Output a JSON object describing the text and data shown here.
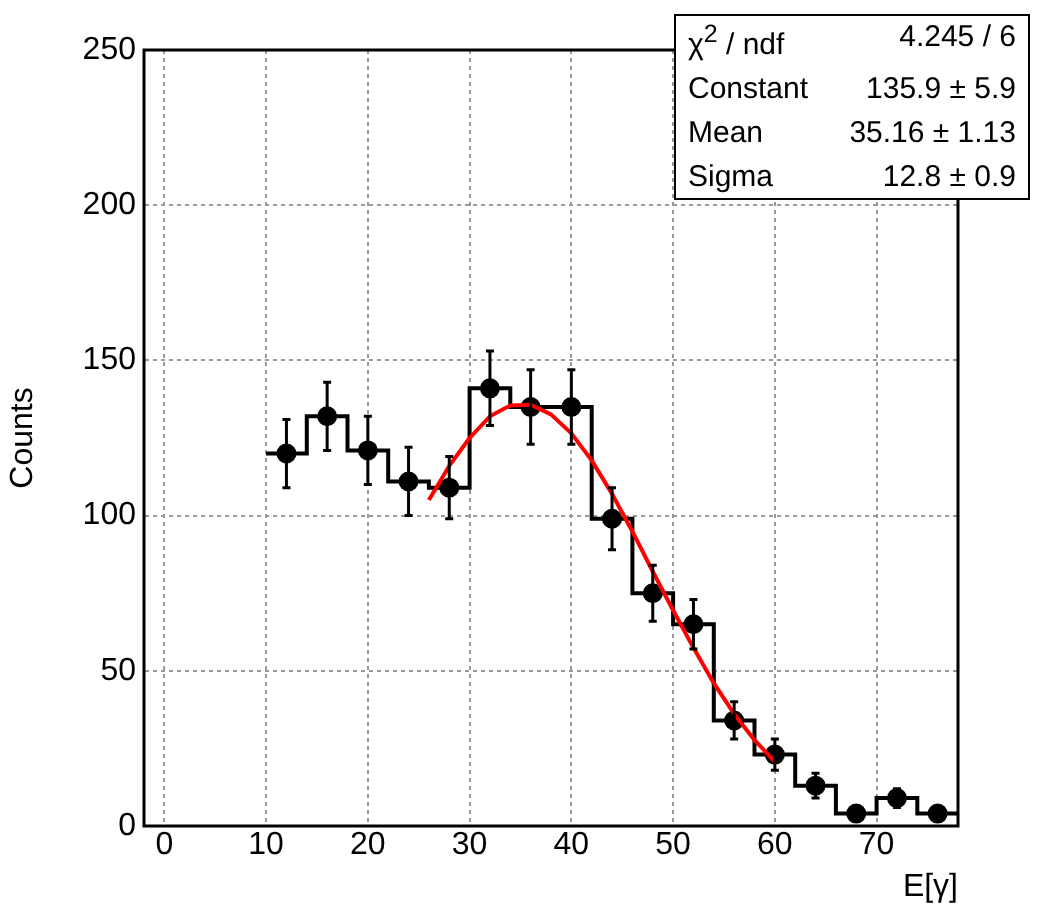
{
  "chart_data": {
    "type": "histogram",
    "xlabel": "E[γ]",
    "ylabel": "Counts",
    "bins": [
      10,
      14,
      18,
      22,
      26,
      30,
      34,
      38,
      42,
      46,
      50,
      54,
      58,
      62,
      66,
      70,
      74,
      78
    ],
    "values": [
      120,
      132,
      121,
      111,
      109,
      141,
      135,
      135,
      99,
      75,
      65,
      34,
      23,
      13,
      4,
      9,
      4
    ],
    "color": "#000000",
    "series": [
      {
        "type": "scatter",
        "color": "#000000",
        "marker": "circle",
        "x": [
          12,
          16,
          20,
          24,
          28,
          32,
          36,
          40,
          44,
          48,
          52,
          56,
          60,
          64,
          68,
          72,
          76
        ],
        "values": [
          120,
          132,
          121,
          111,
          109,
          141,
          135,
          135,
          99,
          75,
          65,
          34,
          23,
          13,
          4,
          9,
          4
        ],
        "errors": [
          11,
          11,
          11,
          11,
          10,
          12,
          12,
          12,
          10,
          9,
          8,
          6,
          5,
          4,
          null,
          3,
          null
        ]
      },
      {
        "type": "line",
        "color": "#ff0000",
        "x": [
          26,
          28,
          30,
          32,
          34,
          36,
          38,
          40,
          42,
          44,
          46,
          48,
          50,
          52,
          54,
          56,
          58,
          60
        ],
        "values": [
          105,
          116,
          125,
          132,
          135.5,
          135.7,
          132.6,
          126.5,
          117.8,
          107,
          94.9,
          82,
          69.5,
          57.4,
          46,
          36.1,
          27.7,
          20.7
        ]
      }
    ],
    "xlim": [
      -2,
      78
    ],
    "xticks": [
      0,
      10,
      20,
      30,
      40,
      50,
      60,
      70
    ],
    "ylim": [
      0,
      250
    ],
    "yticks": [
      0,
      50,
      100,
      150,
      200,
      250
    ],
    "grid": true,
    "annotations": [
      "χ$^{2}$ / ndf",
      "4.245 / 6",
      "Constant",
      "135.9 ± 5.9",
      "Mean",
      "35.16 ± 1.13",
      "Sigma",
      "12.8 ± 0.9"
    ]
  }
}
